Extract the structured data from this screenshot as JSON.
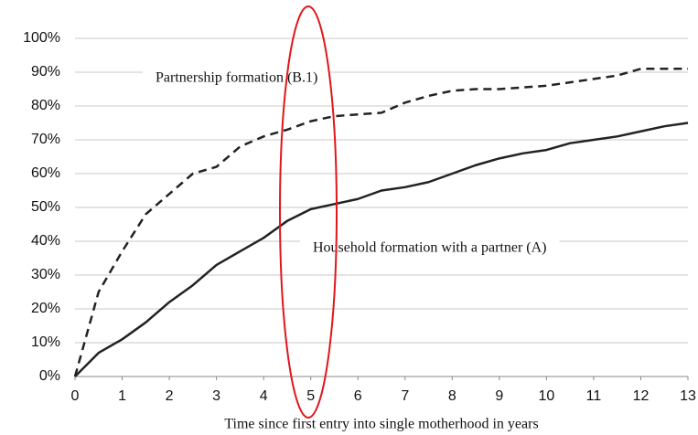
{
  "chart_data": {
    "type": "line",
    "x_label": "Time since first entry into single motherhood in years",
    "x": [
      0,
      0.5,
      1,
      1.5,
      2,
      2.5,
      3,
      3.5,
      4,
      4.5,
      5,
      5.5,
      6,
      6.5,
      7,
      7.5,
      8,
      8.5,
      9,
      9.5,
      10,
      10.5,
      11,
      11.5,
      12,
      12.5,
      13
    ],
    "series": [
      {
        "name": "Partnership formation (B.1)",
        "color": "#222222",
        "dashed": true,
        "values": [
          0,
          25,
          37,
          48,
          54,
          60,
          62,
          68,
          71,
          73,
          75.5,
          77,
          77.5,
          78,
          81,
          83,
          84.5,
          85,
          85,
          85.5,
          86,
          87,
          88,
          89,
          91,
          91,
          91
        ]
      },
      {
        "name": "Household formation with a partner (A)",
        "color": "#222222",
        "dashed": false,
        "values": [
          0,
          7,
          11,
          16,
          22,
          27,
          33,
          37,
          41,
          46,
          49.5,
          51,
          52.5,
          55,
          56,
          57.5,
          60,
          62.5,
          64.5,
          66,
          67,
          69,
          70,
          71,
          72.5,
          74,
          75
        ]
      }
    ],
    "xlim": [
      0,
      13
    ],
    "xticks": [
      0,
      1,
      2,
      3,
      4,
      5,
      6,
      7,
      8,
      9,
      10,
      11,
      12,
      13
    ],
    "ylim": [
      0,
      100
    ],
    "yticks": [
      {
        "value": 0,
        "label": "0%"
      },
      {
        "value": 10,
        "label": "10%"
      },
      {
        "value": 20,
        "label": "20%"
      },
      {
        "value": 30,
        "label": "30%"
      },
      {
        "value": 40,
        "label": "40%"
      },
      {
        "value": 50,
        "label": "50%"
      },
      {
        "value": 60,
        "label": "60%"
      },
      {
        "value": 70,
        "label": "70%"
      },
      {
        "value": 80,
        "label": "80%"
      },
      {
        "value": 90,
        "label": "90%"
      },
      {
        "value": 100,
        "label": "100%"
      }
    ],
    "grid": true
  }
}
